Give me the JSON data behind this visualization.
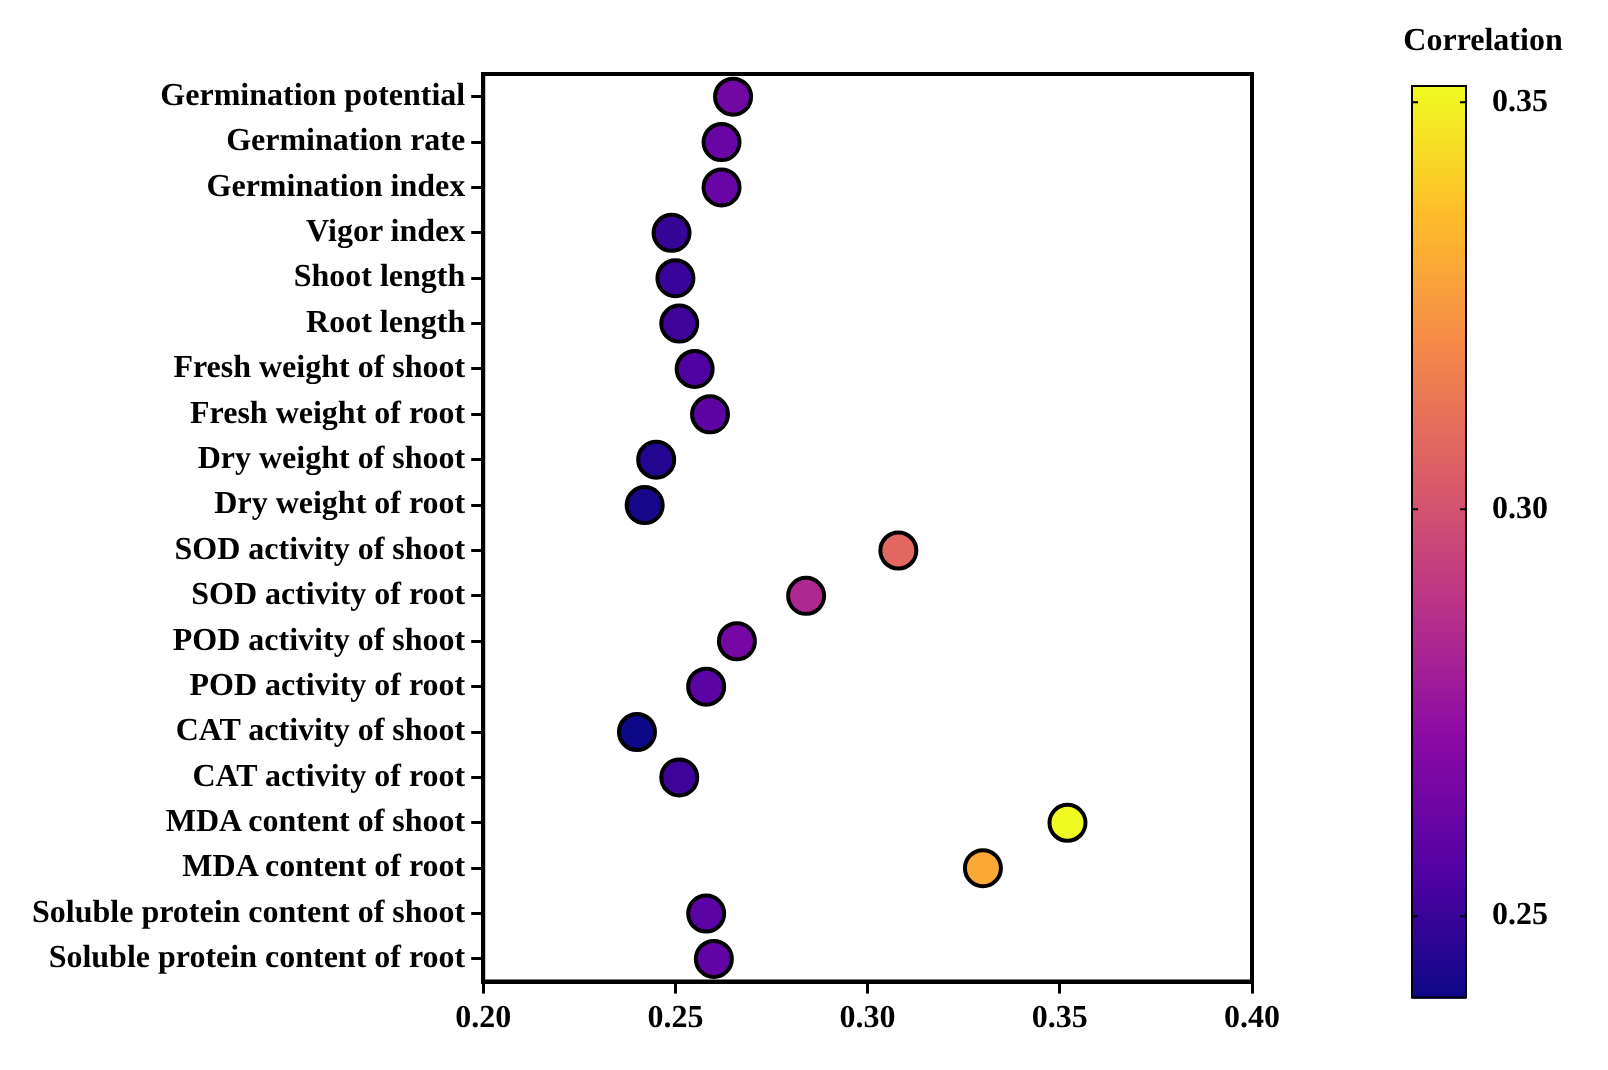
{
  "chart_data": {
    "type": "scatter",
    "orientation": "horizontal",
    "categories": [
      "Germination potential",
      "Germination rate",
      "Germination index",
      "Vigor index",
      "Shoot length",
      "Root length",
      "Fresh weight of shoot",
      "Fresh weight of root",
      "Dry weight of shoot",
      "Dry weight of root",
      "SOD activity of shoot",
      "SOD activity of root",
      "POD activity of shoot",
      "POD activity of root",
      "CAT activity of shoot",
      "CAT activity of root",
      "MDA content of shoot",
      "MDA content of root",
      "Soluble protein content of shoot",
      "Soluble protein content of root"
    ],
    "values": [
      0.265,
      0.262,
      0.262,
      0.249,
      0.25,
      0.251,
      0.255,
      0.259,
      0.245,
      0.242,
      0.308,
      0.284,
      0.266,
      0.258,
      0.24,
      0.251,
      0.352,
      0.33,
      0.258,
      0.26
    ],
    "cvalues": [
      0.265,
      0.262,
      0.262,
      0.249,
      0.25,
      0.251,
      0.255,
      0.259,
      0.245,
      0.242,
      0.308,
      0.284,
      0.266,
      0.258,
      0.24,
      0.251,
      0.352,
      0.33,
      0.258,
      0.26
    ],
    "xlim": [
      0.2,
      0.4
    ],
    "xticks": [
      {
        "value": 0.2,
        "label": "0.20"
      },
      {
        "value": 0.25,
        "label": "0.25"
      },
      {
        "value": 0.3,
        "label": "0.30"
      },
      {
        "value": 0.35,
        "label": "0.35"
      },
      {
        "value": 0.4,
        "label": "0.40"
      }
    ],
    "clabel": "Correlation",
    "clim": [
      0.24,
      0.352
    ],
    "cticks": [
      {
        "value": 0.25,
        "label": "0.25"
      },
      {
        "value": 0.3,
        "label": "0.30"
      },
      {
        "value": 0.35,
        "label": "0.35"
      }
    ],
    "marker": "circle",
    "grid": false,
    "legend": false
  }
}
